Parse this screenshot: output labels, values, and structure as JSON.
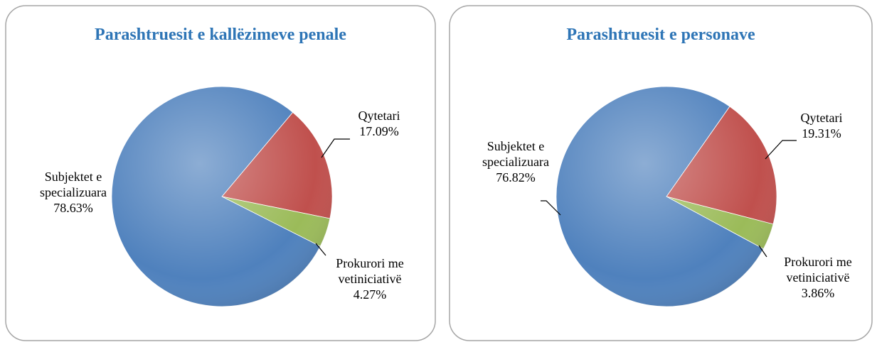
{
  "chart_data": [
    {
      "type": "pie",
      "title": "Parashtruesit e kallëzimeve penale",
      "categories": [
        "Qytetari",
        "Prokurori me vetiniciativë",
        "Subjektet e specializuara"
      ],
      "values": [
        17.09,
        4.27,
        78.63
      ],
      "value_labels": [
        "17.09%",
        "4.27%",
        "78.63%"
      ],
      "colors": [
        "#c0504d",
        "#9bbb59",
        "#4f81bd"
      ]
    },
    {
      "type": "pie",
      "title": "Parashtruesit e personave",
      "categories": [
        "Qytetari",
        "Prokurori me vetiniciativë",
        "Subjektet e specializuara"
      ],
      "values": [
        19.31,
        3.86,
        76.82
      ],
      "value_labels": [
        "19.31%",
        "3.86%",
        "76.82%"
      ],
      "colors": [
        "#c0504d",
        "#9bbb59",
        "#4f81bd"
      ]
    }
  ]
}
